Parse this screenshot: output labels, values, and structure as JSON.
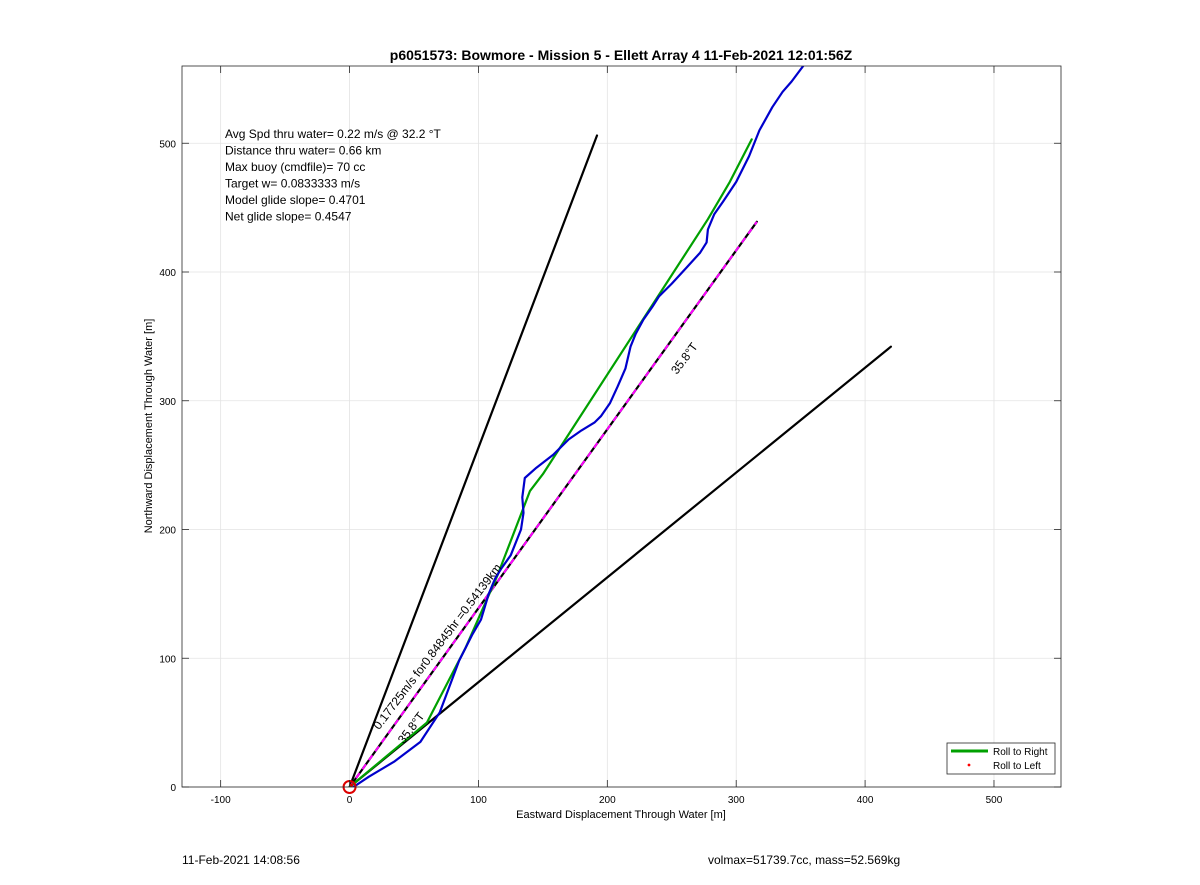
{
  "chart_data": {
    "type": "line",
    "title": "p6051573: Bowmore - Mission 5 - Ellett Array 4 11-Feb-2021 12:01:56Z",
    "xlabel": "Eastward Displacement Through Water [m]",
    "ylabel": "Northward Displacement Through Water [m]",
    "xlim": [
      -130,
      552
    ],
    "ylim": [
      0,
      560
    ],
    "xticks": [
      -100,
      0,
      100,
      200,
      300,
      400,
      500
    ],
    "yticks": [
      0,
      100,
      200,
      300,
      400,
      500
    ],
    "grid": true,
    "legend": {
      "position": "bottom-right",
      "entries": [
        {
          "label": "Roll to Right",
          "color": "#00a000",
          "style": "line"
        },
        {
          "label": "Roll to Left",
          "color": "#ff0000",
          "style": "dot"
        }
      ]
    },
    "info_text": [
      "Avg Spd thru water=  0.22 m/s @  32.2 °T",
      "Distance thru water=  0.66 km",
      "Max buoy (cmdfile)= 70 cc",
      "Target w= 0.0833333 m/s",
      "Model glide slope= 0.4701",
      "Net glide slope= 0.4547"
    ],
    "annotations": [
      {
        "text": "0.17725m/s for0.84845hr =0.54139km",
        "x": 23,
        "y": 44,
        "angle": 53
      },
      {
        "text": "35.8°T",
        "x": 42,
        "y": 33,
        "angle": 53
      },
      {
        "text": "35.8°T",
        "x": 254,
        "y": 320,
        "angle": 53
      }
    ],
    "series": [
      {
        "color": "#000000",
        "x": [
          0,
          192
        ],
        "y": [
          0,
          506
        ]
      },
      {
        "color": "#000000",
        "x": [
          0,
          420
        ],
        "y": [
          0,
          342
        ]
      },
      {
        "color": "#000000",
        "x": [
          0,
          316
        ],
        "y": [
          0,
          439
        ],
        "dashed_color": "#ff00ff"
      },
      {
        "color": "#00a000",
        "x": [
          0,
          60,
          90,
          115,
          140,
          150,
          278,
          295,
          312
        ],
        "y": [
          0,
          50,
          108,
          165,
          230,
          243,
          441,
          470,
          503
        ]
      },
      {
        "color": "#0000cc",
        "x": [
          3,
          15,
          35,
          55,
          70,
          85,
          95,
          102,
          108,
          113,
          118,
          125,
          133,
          135,
          134,
          136,
          145,
          158,
          170,
          180,
          190,
          195,
          202,
          208,
          214,
          218,
          222,
          228,
          235,
          240,
          250,
          262,
          272,
          277,
          278,
          283,
          290,
          300,
          310,
          318,
          328,
          336,
          343,
          352
        ],
        "y": [
          0,
          8,
          20,
          35,
          58,
          98,
          118,
          130,
          150,
          162,
          170,
          180,
          200,
          213,
          225,
          240,
          248,
          258,
          270,
          277,
          283,
          288,
          298,
          311,
          325,
          342,
          352,
          363,
          373,
          381,
          391,
          404,
          415,
          423,
          433,
          445,
          455,
          470,
          490,
          510,
          528,
          540,
          548,
          560
        ]
      }
    ],
    "start_marker": {
      "x": 0,
      "y": 0,
      "color": "#dd0000"
    }
  },
  "footer": {
    "left": "11-Feb-2021 14:08:56",
    "right": "volmax=51739.7cc, mass=52.569kg"
  }
}
